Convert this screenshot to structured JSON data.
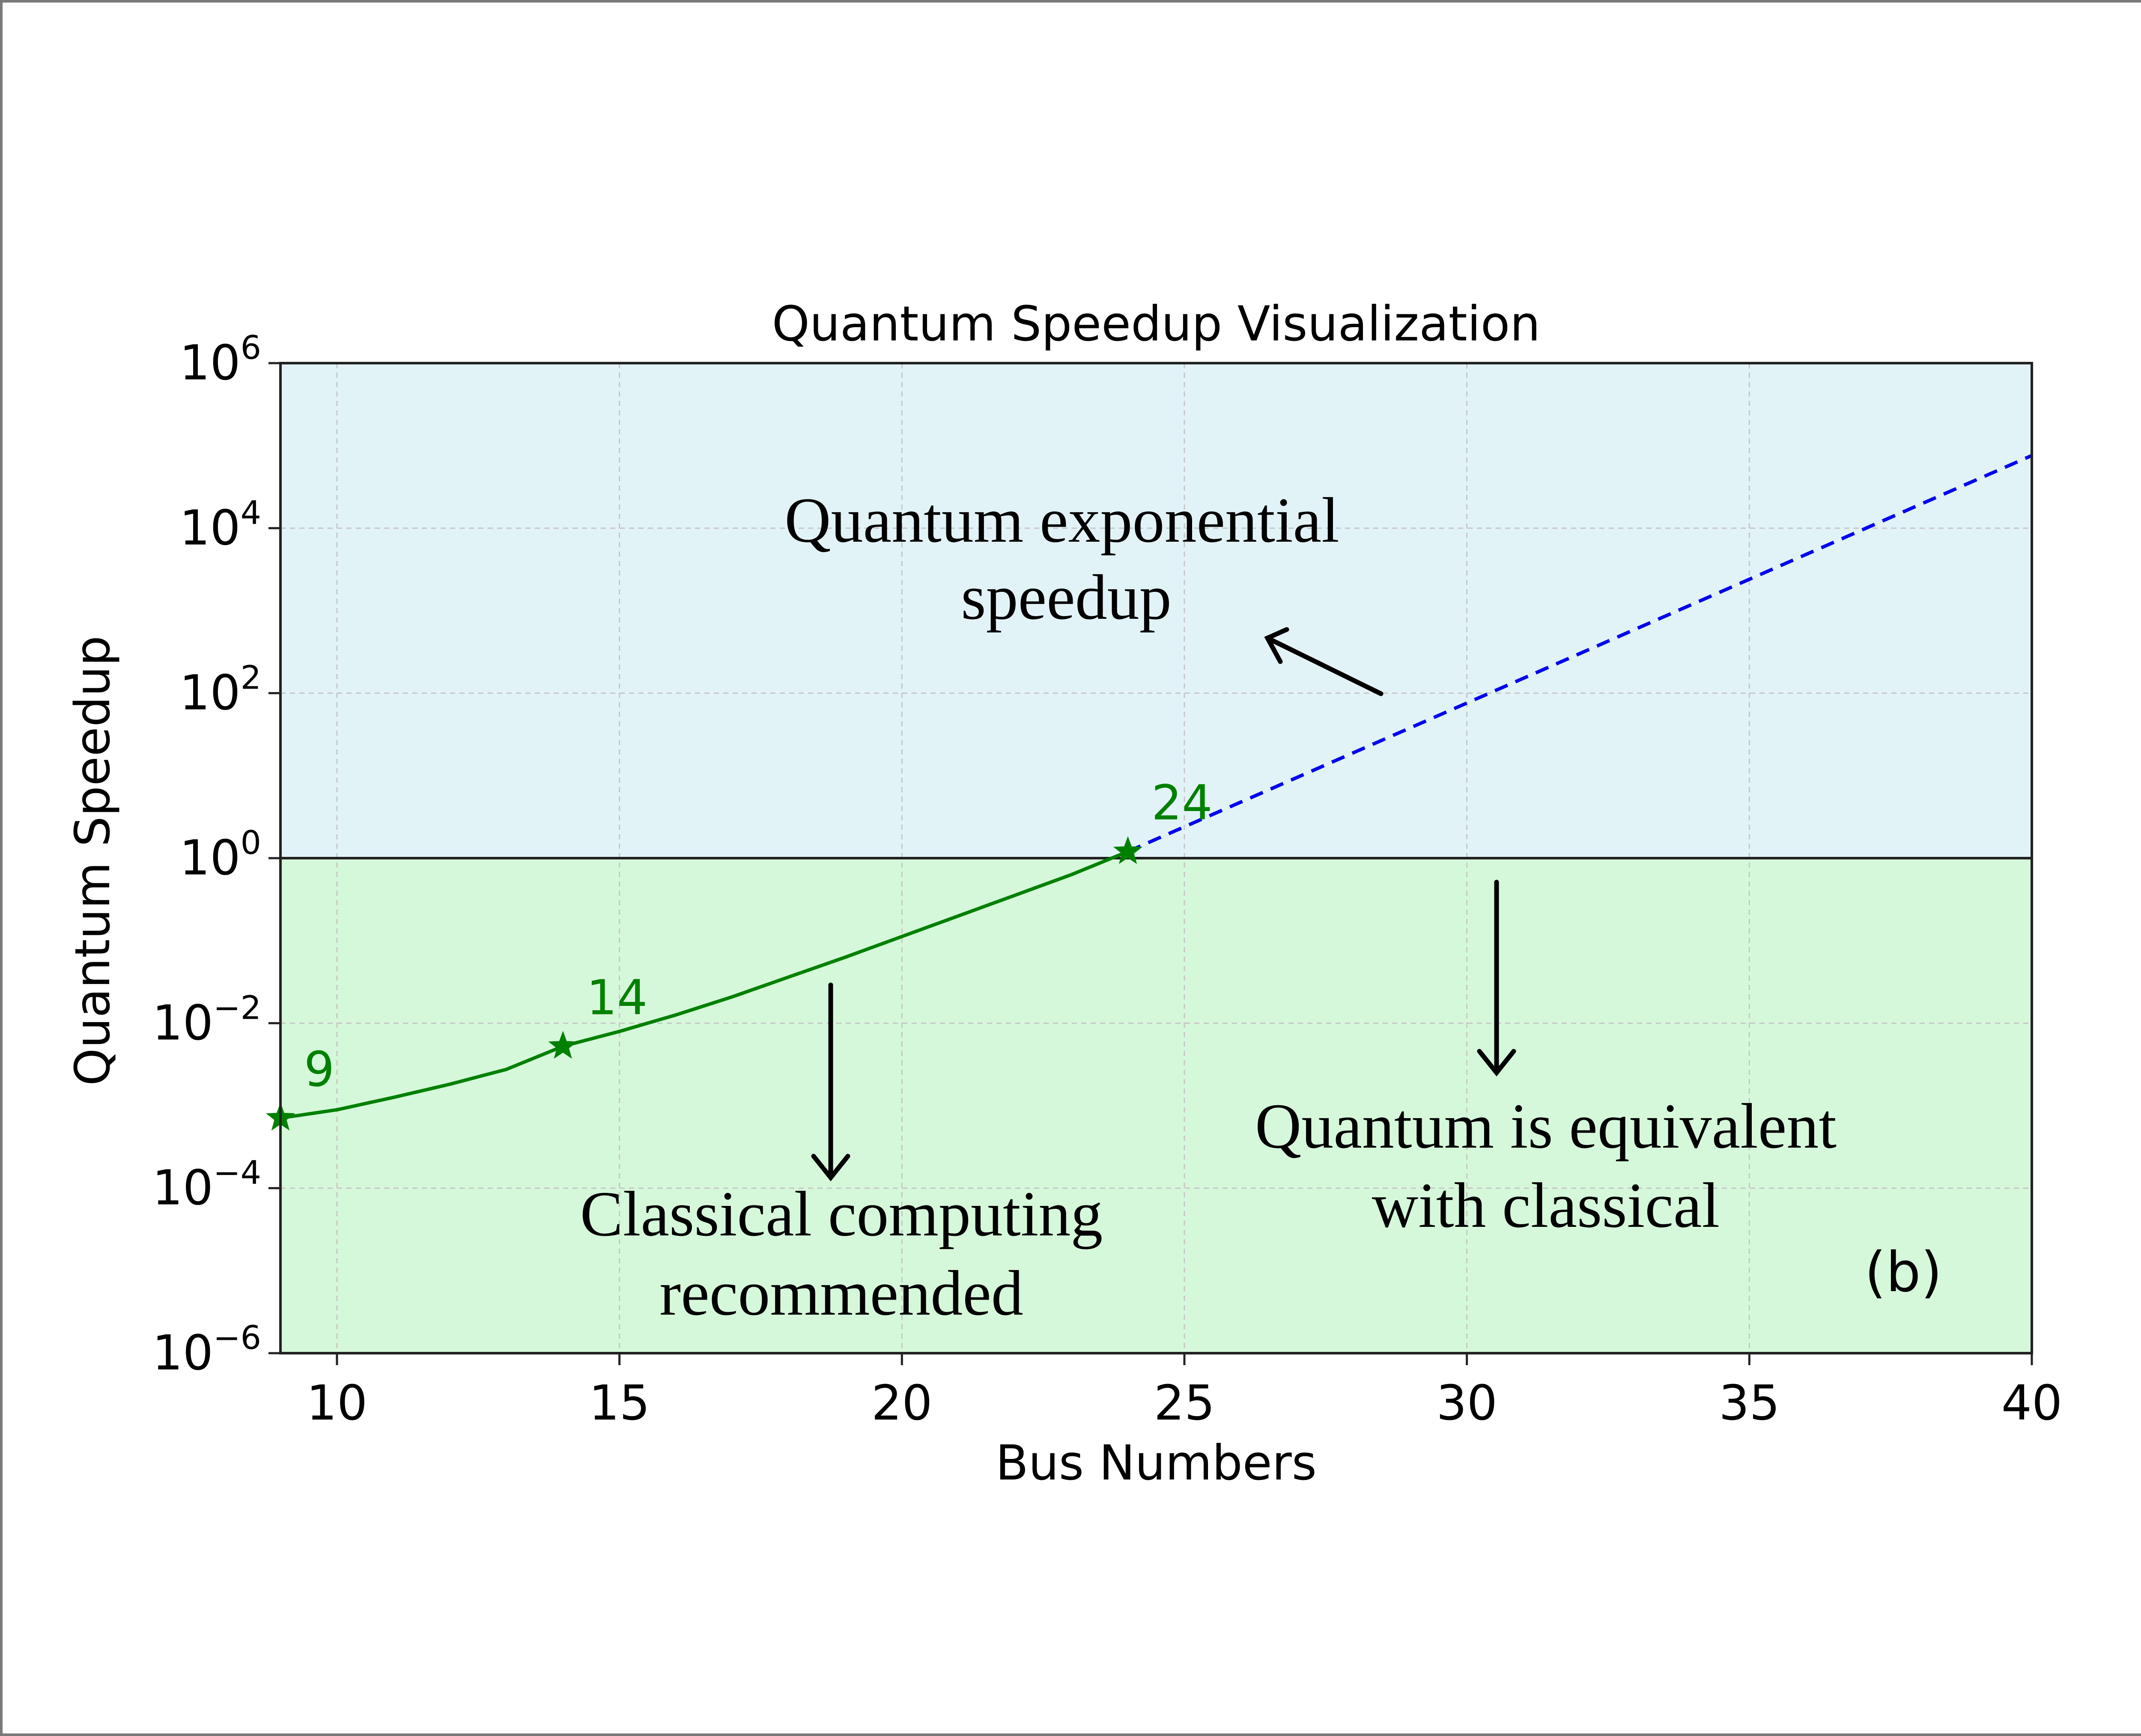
{
  "chart_data": {
    "type": "line",
    "title": "Quantum Speedup Visualization",
    "xlabel": "Bus Numbers",
    "ylabel": "Quantum Speedup",
    "xlim": [
      9,
      40
    ],
    "ylim_exponent": [
      -6,
      6
    ],
    "yscale": "log",
    "grid": true,
    "x_ticks": [
      "10",
      "15",
      "20",
      "25",
      "30",
      "35",
      "40"
    ],
    "y_ticks": [
      {
        "value": 6,
        "base": "10",
        "exp": "6"
      },
      {
        "value": 4,
        "base": "10",
        "exp": "4"
      },
      {
        "value": 2,
        "base": "10",
        "exp": "2"
      },
      {
        "value": 0,
        "base": "10",
        "exp": "0"
      },
      {
        "value": -2,
        "base": "10",
        "exp": "−2"
      },
      {
        "value": -4,
        "base": "10",
        "exp": "−4"
      },
      {
        "value": -6,
        "base": "10",
        "exp": "−6"
      }
    ],
    "regions": [
      {
        "y_from_exponent": 0,
        "y_to_exponent": 6,
        "color": "#e2f3f8"
      },
      {
        "y_from_exponent": -6,
        "y_to_exponent": 0,
        "color": "#d6f8da"
      }
    ],
    "threshold_line_exponent": 0,
    "series": [
      {
        "style": "solid",
        "color": "#008000",
        "x": [
          9,
          10,
          11,
          12,
          13,
          14,
          15,
          16,
          17,
          18,
          19,
          20,
          21,
          22,
          23,
          24
        ],
        "log10_y": [
          -3.15,
          -3.05,
          -2.9,
          -2.74,
          -2.56,
          -2.28,
          -2.1,
          -1.9,
          -1.68,
          -1.44,
          -1.2,
          -0.95,
          -0.7,
          -0.45,
          -0.2,
          0.08
        ]
      },
      {
        "style": "dashed",
        "color": "#0000ee",
        "x": [
          24,
          40
        ],
        "log10_y": [
          0.08,
          4.88
        ]
      }
    ],
    "markers": [
      {
        "x": 9,
        "log10_y": -3.15,
        "label": "9"
      },
      {
        "x": 14,
        "log10_y": -2.28,
        "label": "14"
      },
      {
        "x": 24,
        "log10_y": 0.08,
        "label": "24"
      }
    ],
    "annotations": [
      {
        "id": "exp",
        "lines": [
          "Quantum exponential",
          "speedup"
        ]
      },
      {
        "id": "classical",
        "lines": [
          "Classical computing",
          "recommended"
        ]
      },
      {
        "id": "equiv",
        "lines": [
          "Quantum is equivalent",
          "with classical"
        ]
      }
    ],
    "panel_label": "(b)"
  }
}
